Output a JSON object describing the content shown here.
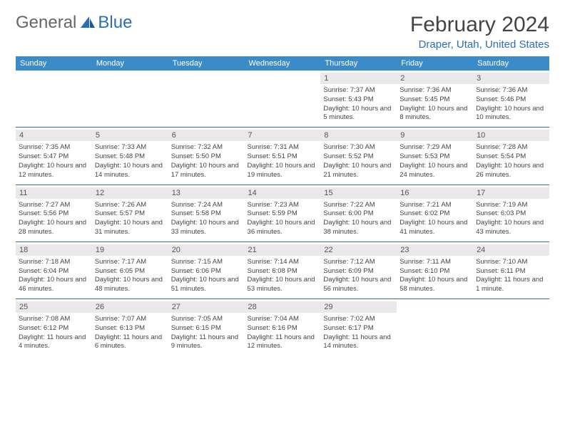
{
  "logo": {
    "part1": "General",
    "part2": "Blue"
  },
  "title": "February 2024",
  "location": "Draper, Utah, United States",
  "colors": {
    "header_bg": "#3b8bc9",
    "header_text": "#ffffff",
    "daynum_bg": "#e9e9e9",
    "row_border": "#2a6fb5",
    "accent": "#2a6fb5",
    "body_text": "#444444"
  },
  "day_labels": [
    "Sunday",
    "Monday",
    "Tuesday",
    "Wednesday",
    "Thursday",
    "Friday",
    "Saturday"
  ],
  "weeks": [
    [
      null,
      null,
      null,
      null,
      {
        "n": "1",
        "sr": "7:37 AM",
        "ss": "5:43 PM",
        "dl": "10 hours and 5 minutes."
      },
      {
        "n": "2",
        "sr": "7:36 AM",
        "ss": "5:45 PM",
        "dl": "10 hours and 8 minutes."
      },
      {
        "n": "3",
        "sr": "7:36 AM",
        "ss": "5:46 PM",
        "dl": "10 hours and 10 minutes."
      }
    ],
    [
      {
        "n": "4",
        "sr": "7:35 AM",
        "ss": "5:47 PM",
        "dl": "10 hours and 12 minutes."
      },
      {
        "n": "5",
        "sr": "7:33 AM",
        "ss": "5:48 PM",
        "dl": "10 hours and 14 minutes."
      },
      {
        "n": "6",
        "sr": "7:32 AM",
        "ss": "5:50 PM",
        "dl": "10 hours and 17 minutes."
      },
      {
        "n": "7",
        "sr": "7:31 AM",
        "ss": "5:51 PM",
        "dl": "10 hours and 19 minutes."
      },
      {
        "n": "8",
        "sr": "7:30 AM",
        "ss": "5:52 PM",
        "dl": "10 hours and 21 minutes."
      },
      {
        "n": "9",
        "sr": "7:29 AM",
        "ss": "5:53 PM",
        "dl": "10 hours and 24 minutes."
      },
      {
        "n": "10",
        "sr": "7:28 AM",
        "ss": "5:54 PM",
        "dl": "10 hours and 26 minutes."
      }
    ],
    [
      {
        "n": "11",
        "sr": "7:27 AM",
        "ss": "5:56 PM",
        "dl": "10 hours and 28 minutes."
      },
      {
        "n": "12",
        "sr": "7:26 AM",
        "ss": "5:57 PM",
        "dl": "10 hours and 31 minutes."
      },
      {
        "n": "13",
        "sr": "7:24 AM",
        "ss": "5:58 PM",
        "dl": "10 hours and 33 minutes."
      },
      {
        "n": "14",
        "sr": "7:23 AM",
        "ss": "5:59 PM",
        "dl": "10 hours and 36 minutes."
      },
      {
        "n": "15",
        "sr": "7:22 AM",
        "ss": "6:00 PM",
        "dl": "10 hours and 38 minutes."
      },
      {
        "n": "16",
        "sr": "7:21 AM",
        "ss": "6:02 PM",
        "dl": "10 hours and 41 minutes."
      },
      {
        "n": "17",
        "sr": "7:19 AM",
        "ss": "6:03 PM",
        "dl": "10 hours and 43 minutes."
      }
    ],
    [
      {
        "n": "18",
        "sr": "7:18 AM",
        "ss": "6:04 PM",
        "dl": "10 hours and 46 minutes."
      },
      {
        "n": "19",
        "sr": "7:17 AM",
        "ss": "6:05 PM",
        "dl": "10 hours and 48 minutes."
      },
      {
        "n": "20",
        "sr": "7:15 AM",
        "ss": "6:06 PM",
        "dl": "10 hours and 51 minutes."
      },
      {
        "n": "21",
        "sr": "7:14 AM",
        "ss": "6:08 PM",
        "dl": "10 hours and 53 minutes."
      },
      {
        "n": "22",
        "sr": "7:12 AM",
        "ss": "6:09 PM",
        "dl": "10 hours and 56 minutes."
      },
      {
        "n": "23",
        "sr": "7:11 AM",
        "ss": "6:10 PM",
        "dl": "10 hours and 58 minutes."
      },
      {
        "n": "24",
        "sr": "7:10 AM",
        "ss": "6:11 PM",
        "dl": "11 hours and 1 minute."
      }
    ],
    [
      {
        "n": "25",
        "sr": "7:08 AM",
        "ss": "6:12 PM",
        "dl": "11 hours and 4 minutes."
      },
      {
        "n": "26",
        "sr": "7:07 AM",
        "ss": "6:13 PM",
        "dl": "11 hours and 6 minutes."
      },
      {
        "n": "27",
        "sr": "7:05 AM",
        "ss": "6:15 PM",
        "dl": "11 hours and 9 minutes."
      },
      {
        "n": "28",
        "sr": "7:04 AM",
        "ss": "6:16 PM",
        "dl": "11 hours and 12 minutes."
      },
      {
        "n": "29",
        "sr": "7:02 AM",
        "ss": "6:17 PM",
        "dl": "11 hours and 14 minutes."
      },
      null,
      null
    ]
  ],
  "labels": {
    "sunrise": "Sunrise:",
    "sunset": "Sunset:",
    "daylight": "Daylight:"
  }
}
